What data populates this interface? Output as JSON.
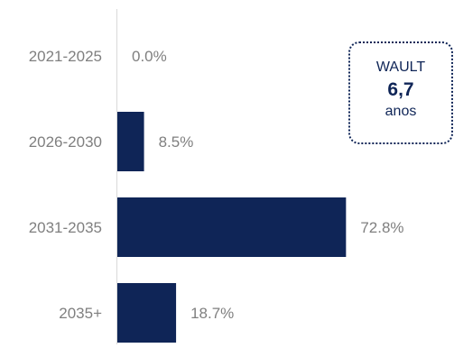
{
  "chart_data": {
    "type": "bar",
    "orientation": "horizontal",
    "categories": [
      "2021-2025",
      "2026-2030",
      "2031-2035",
      "2035+"
    ],
    "values": [
      0.0,
      8.5,
      72.8,
      18.7
    ],
    "value_labels": [
      "0.0%",
      "8.5%",
      "72.8%",
      "18.7%"
    ],
    "title": "",
    "xlabel": "",
    "ylabel": "",
    "xlim": [
      0,
      100
    ],
    "grid": false,
    "legend": "none",
    "bar_color": "#0f2557",
    "label_color": "#7f7f7f",
    "axis_color": "#d9d9d9"
  },
  "wault": {
    "label": "WAULT",
    "value": "6,7",
    "unit": "anos",
    "color": "#0f2557"
  }
}
